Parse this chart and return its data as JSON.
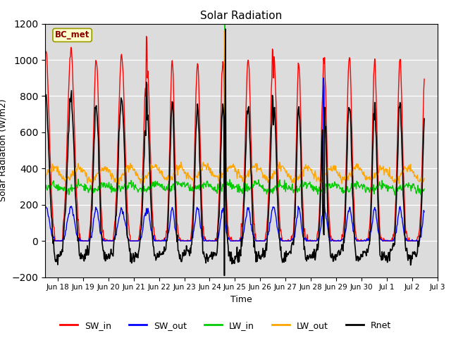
{
  "title": "Solar Radiation",
  "xlabel": "Time",
  "ylabel": "Solar Radiation (W/m2)",
  "ylim": [
    -200,
    1200
  ],
  "annotation": "BC_met",
  "annotation_color": "#8B0000",
  "annotation_bg": "#FFFFCC",
  "plot_bg": "#DCDCDC",
  "series": {
    "SW_in": {
      "color": "#FF0000",
      "lw": 1.0
    },
    "SW_out": {
      "color": "#0000FF",
      "lw": 1.0
    },
    "LW_in": {
      "color": "#00CC00",
      "lw": 1.0
    },
    "LW_out": {
      "color": "#FFA500",
      "lw": 1.0
    },
    "Rnet": {
      "color": "#000000",
      "lw": 1.2
    }
  },
  "tick_labels": [
    "Jun 18",
    "Jun 19",
    "Jun 20",
    "Jun 21",
    "Jun 22",
    "Jun 23",
    "Jun 24",
    "Jun 25",
    "Jun 26",
    "Jun 27",
    "Jun 28",
    "Jun 29",
    "Jun 30",
    "Jul 1",
    "Jul 2",
    "Jul 3"
  ],
  "n_days": 15.5,
  "dt_min": 30
}
